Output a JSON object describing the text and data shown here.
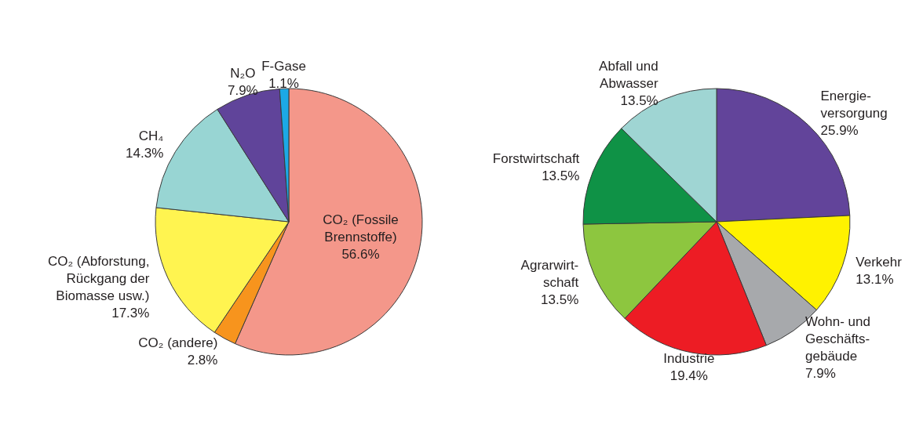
{
  "chart_data": [
    {
      "type": "pie",
      "categories": [
        "CO₂ (Fossile\nBrennstoffe)",
        "CO₂ (andere)",
        "CO₂ (Abforstung,\nRückgang der\nBiomasse usw.)",
        "CH₄",
        "N₂O",
        "F-Gase"
      ],
      "values": [
        56.6,
        2.8,
        17.3,
        14.3,
        7.9,
        1.1
      ],
      "colors": [
        "#f4978a",
        "#f7941d",
        "#fff450",
        "#98d5d3",
        "#60449a",
        "#1ca9e6"
      ],
      "value_labels": [
        "56.6%",
        "2.8%",
        "17.3%",
        "14.3%",
        "7.9%",
        "1.1%"
      ]
    },
    {
      "type": "pie",
      "categories": [
        "Energie-\nversorgung",
        "Verkehr",
        "Wohn- und\nGeschäfts-\ngebäude",
        "Industrie",
        "Agrarwirt-\nschaft",
        "Forstwirtschaft",
        "Abfall und\nAbwasser"
      ],
      "values": [
        25.9,
        13.1,
        7.9,
        19.4,
        13.5,
        13.5,
        13.5
      ],
      "colors": [
        "#62449a",
        "#fff200",
        "#a7a9ac",
        "#ed1c24",
        "#8dc63f",
        "#0f9246",
        "#9fd5d3"
      ],
      "value_labels": [
        "25.9%",
        "13.1%",
        "7.9%",
        "19.4%",
        "13.5%",
        "13.5%",
        "13.5%"
      ]
    }
  ]
}
